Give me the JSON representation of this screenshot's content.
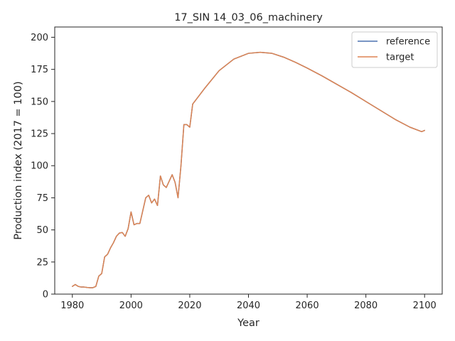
{
  "chart_data": {
    "type": "line",
    "title": "17_SIN 14_03_06_machinery",
    "xlabel": "Year",
    "ylabel": "Production index (2017 = 100)",
    "xlim": [
      1974,
      2106
    ],
    "ylim": [
      0,
      208
    ],
    "xticks": [
      1980,
      2000,
      2020,
      2040,
      2060,
      2080,
      2100
    ],
    "yticks": [
      0,
      25,
      50,
      75,
      100,
      125,
      150,
      175,
      200
    ],
    "grid": false,
    "legend_position": "top-right",
    "series": [
      {
        "name": "reference",
        "color": "#4c72b0",
        "x": [
          1980,
          1981,
          1982,
          1983,
          1984,
          1985,
          1986,
          1987,
          1988,
          1989,
          1990,
          1991,
          1992,
          1993,
          1994,
          1995,
          1996,
          1997,
          1998,
          1999,
          2000,
          2001,
          2002,
          2003,
          2004,
          2005,
          2006,
          2007,
          2008,
          2009,
          2010,
          2011,
          2012,
          2013,
          2014,
          2015,
          2016,
          2017,
          2018,
          2019,
          2020,
          2021,
          2022,
          2025,
          2030,
          2035,
          2040,
          2044,
          2048,
          2052,
          2056,
          2060,
          2065,
          2070,
          2075,
          2080,
          2085,
          2090,
          2095,
          2099,
          2100
        ],
        "values": [
          6,
          7.5,
          6,
          5.5,
          5.5,
          5.2,
          5,
          5,
          6,
          14,
          16,
          29,
          31,
          36,
          40,
          45,
          47.5,
          48,
          45,
          51,
          64,
          54,
          55,
          55,
          65,
          75,
          77,
          71,
          74,
          69,
          92,
          85,
          83,
          88,
          93,
          87,
          75,
          100,
          132,
          132,
          130,
          148,
          151,
          160,
          174,
          183,
          187.5,
          188.3,
          187.5,
          184.5,
          180.5,
          176,
          170,
          163.5,
          157,
          150,
          143,
          136,
          130,
          126.5,
          127.5
        ]
      },
      {
        "name": "target",
        "color": "#dd8452",
        "x": [
          1980,
          1981,
          1982,
          1983,
          1984,
          1985,
          1986,
          1987,
          1988,
          1989,
          1990,
          1991,
          1992,
          1993,
          1994,
          1995,
          1996,
          1997,
          1998,
          1999,
          2000,
          2001,
          2002,
          2003,
          2004,
          2005,
          2006,
          2007,
          2008,
          2009,
          2010,
          2011,
          2012,
          2013,
          2014,
          2015,
          2016,
          2017,
          2018,
          2019,
          2020,
          2021,
          2022,
          2025,
          2030,
          2035,
          2040,
          2044,
          2048,
          2052,
          2056,
          2060,
          2065,
          2070,
          2075,
          2080,
          2085,
          2090,
          2095,
          2099,
          2100
        ],
        "values": [
          6,
          7.5,
          6,
          5.5,
          5.5,
          5.2,
          5,
          5,
          6,
          14,
          16,
          29,
          31,
          36,
          40,
          45,
          47.5,
          48,
          45,
          51,
          64,
          54,
          55,
          55,
          65,
          75,
          77,
          71,
          74,
          69,
          92,
          85,
          83,
          88,
          93,
          87,
          75,
          100,
          132,
          132,
          130,
          148,
          151,
          160,
          174,
          183,
          187.5,
          188.3,
          187.5,
          184.5,
          180.5,
          176,
          170,
          163.5,
          157,
          150,
          143,
          136,
          130,
          126.5,
          127.5
        ]
      }
    ]
  }
}
